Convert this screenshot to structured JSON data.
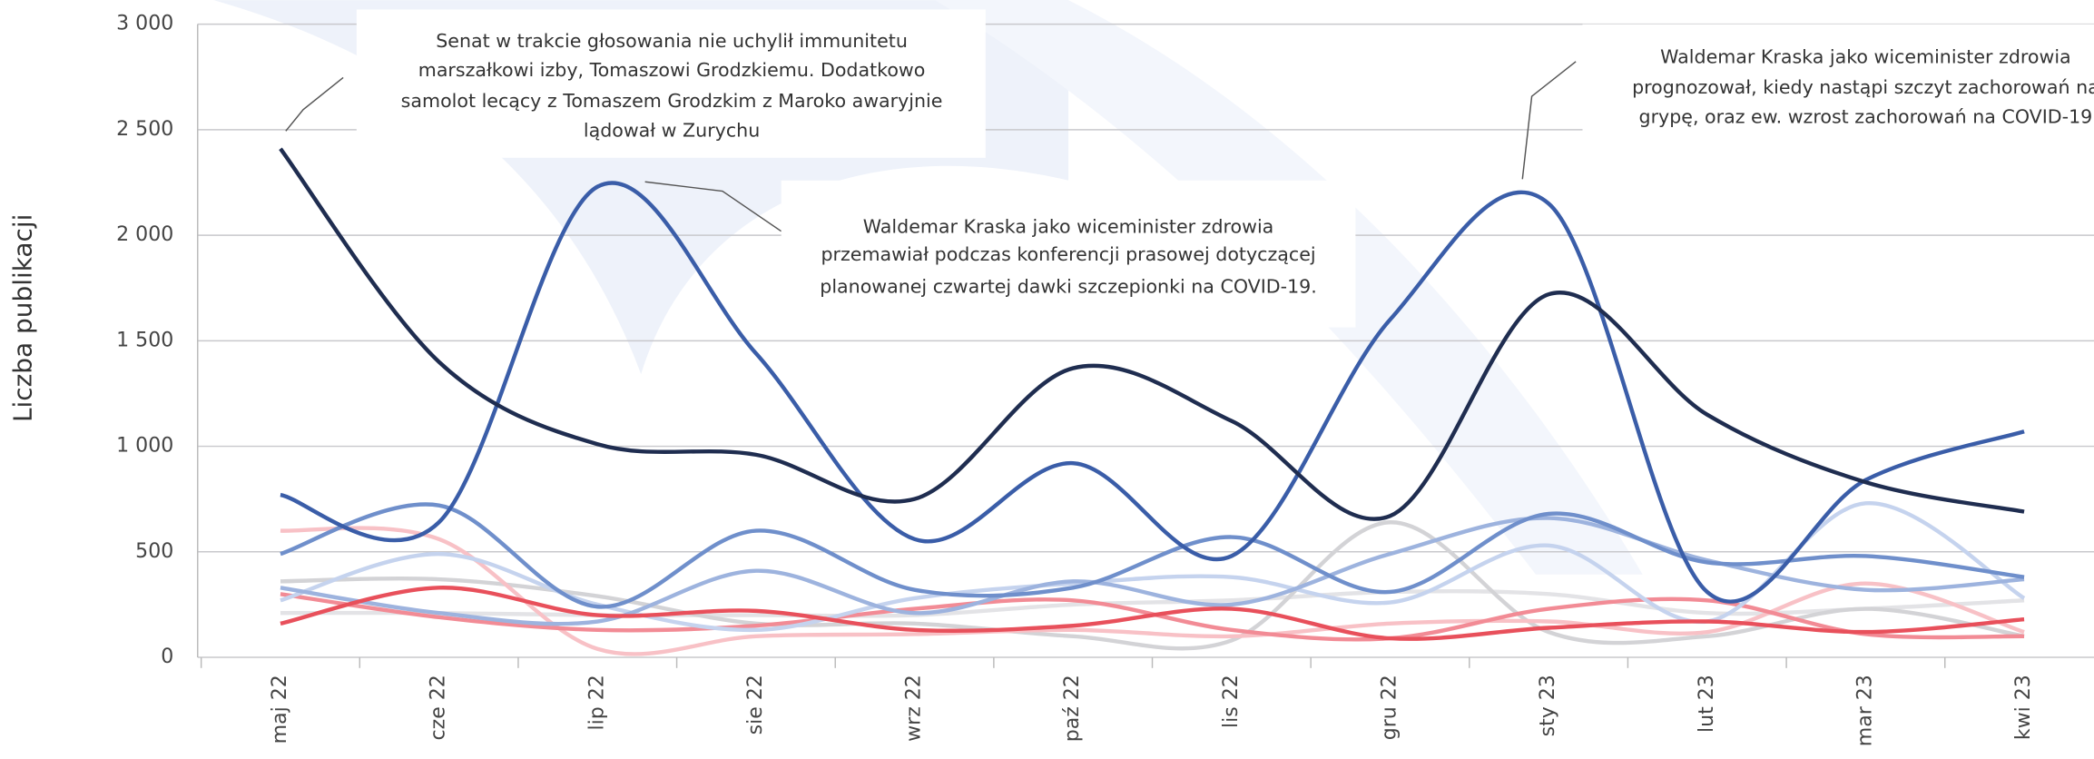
{
  "chart_data": {
    "type": "line",
    "y_label": "Liczba publikacji",
    "categories": [
      "maj 22",
      "cze 22",
      "lip 22",
      "sie 22",
      "wrz 22",
      "paź 22",
      "lis 22",
      "gru 22",
      "sty 23",
      "lut 23",
      "mar 23",
      "kwi 23"
    ],
    "ylim": [
      0,
      3000
    ],
    "yticks": [
      0,
      500,
      {
        "value": 1000,
        "label": "1 000"
      },
      {
        "value": 1500,
        "label": "1 500"
      },
      {
        "value": 2000,
        "label": "2 000"
      },
      {
        "value": 2500,
        "label": "2 500"
      },
      {
        "value": 3000,
        "label": "3 000"
      }
    ],
    "grid": true,
    "series": [
      {
        "color": "#e3e3e6",
        "values": [
          210,
          210,
          200,
          200,
          200,
          250,
          270,
          310,
          300,
          210,
          230,
          270
        ]
      },
      {
        "color": "#d3d3d6",
        "values": [
          360,
          370,
          290,
          160,
          160,
          100,
          80,
          640,
          120,
          100,
          230,
          100
        ]
      },
      {
        "color": "#f8c1c6",
        "values": [
          600,
          560,
          40,
          100,
          110,
          130,
          100,
          160,
          170,
          120,
          350,
          120
        ]
      },
      {
        "color": "#f28b95",
        "values": [
          300,
          190,
          130,
          150,
          230,
          270,
          130,
          90,
          230,
          270,
          110,
          100
        ]
      },
      {
        "color": "#c5d3ee",
        "values": [
          270,
          490,
          250,
          130,
          280,
          350,
          380,
          260,
          530,
          170,
          730,
          280
        ]
      },
      {
        "color": "#9db3de",
        "values": [
          330,
          210,
          170,
          410,
          210,
          360,
          250,
          490,
          660,
          460,
          320,
          370
        ]
      },
      {
        "color": "#6f8fcb",
        "values": [
          490,
          720,
          240,
          600,
          320,
          330,
          570,
          310,
          680,
          450,
          480,
          380
        ]
      },
      {
        "color": "#e8505b",
        "values": [
          160,
          330,
          200,
          220,
          130,
          150,
          230,
          90,
          140,
          170,
          120,
          180
        ]
      },
      {
        "color": "#3a5da8",
        "values": [
          770,
          640,
          2230,
          1440,
          560,
          920,
          480,
          1600,
          2150,
          310,
          840,
          1070
        ]
      },
      {
        "color": "#1f2d50",
        "values": [
          2410,
          1400,
          1010,
          960,
          750,
          1370,
          1120,
          670,
          1720,
          1150,
          830,
          690
        ]
      }
    ],
    "annotations": [
      {
        "lines": [
          "Senat w trakcie głosowania nie uchylił immunitetu",
          "marszałkowi izby, Tomaszowi Grodzkiemu. Dodatkowo",
          "samolot lecący z Tomaszem Grodzkim z Maroko awaryjnie",
          "lądował w Zurychu"
        ]
      },
      {
        "lines": [
          "Waldemar Kraska jako wiceminister zdrowia",
          "przemawiał podczas konferencji prasowej dotyczącej",
          "planowanej czwartej dawki szczepionki na COVID-19."
        ]
      },
      {
        "lines": [
          "Waldemar Kraska jako wiceminister zdrowia",
          "prognozował, kiedy nastąpi szczyt zachorowań na",
          "grypę, oraz ew. wzrost zachorowań na COVID-19"
        ]
      }
    ]
  }
}
